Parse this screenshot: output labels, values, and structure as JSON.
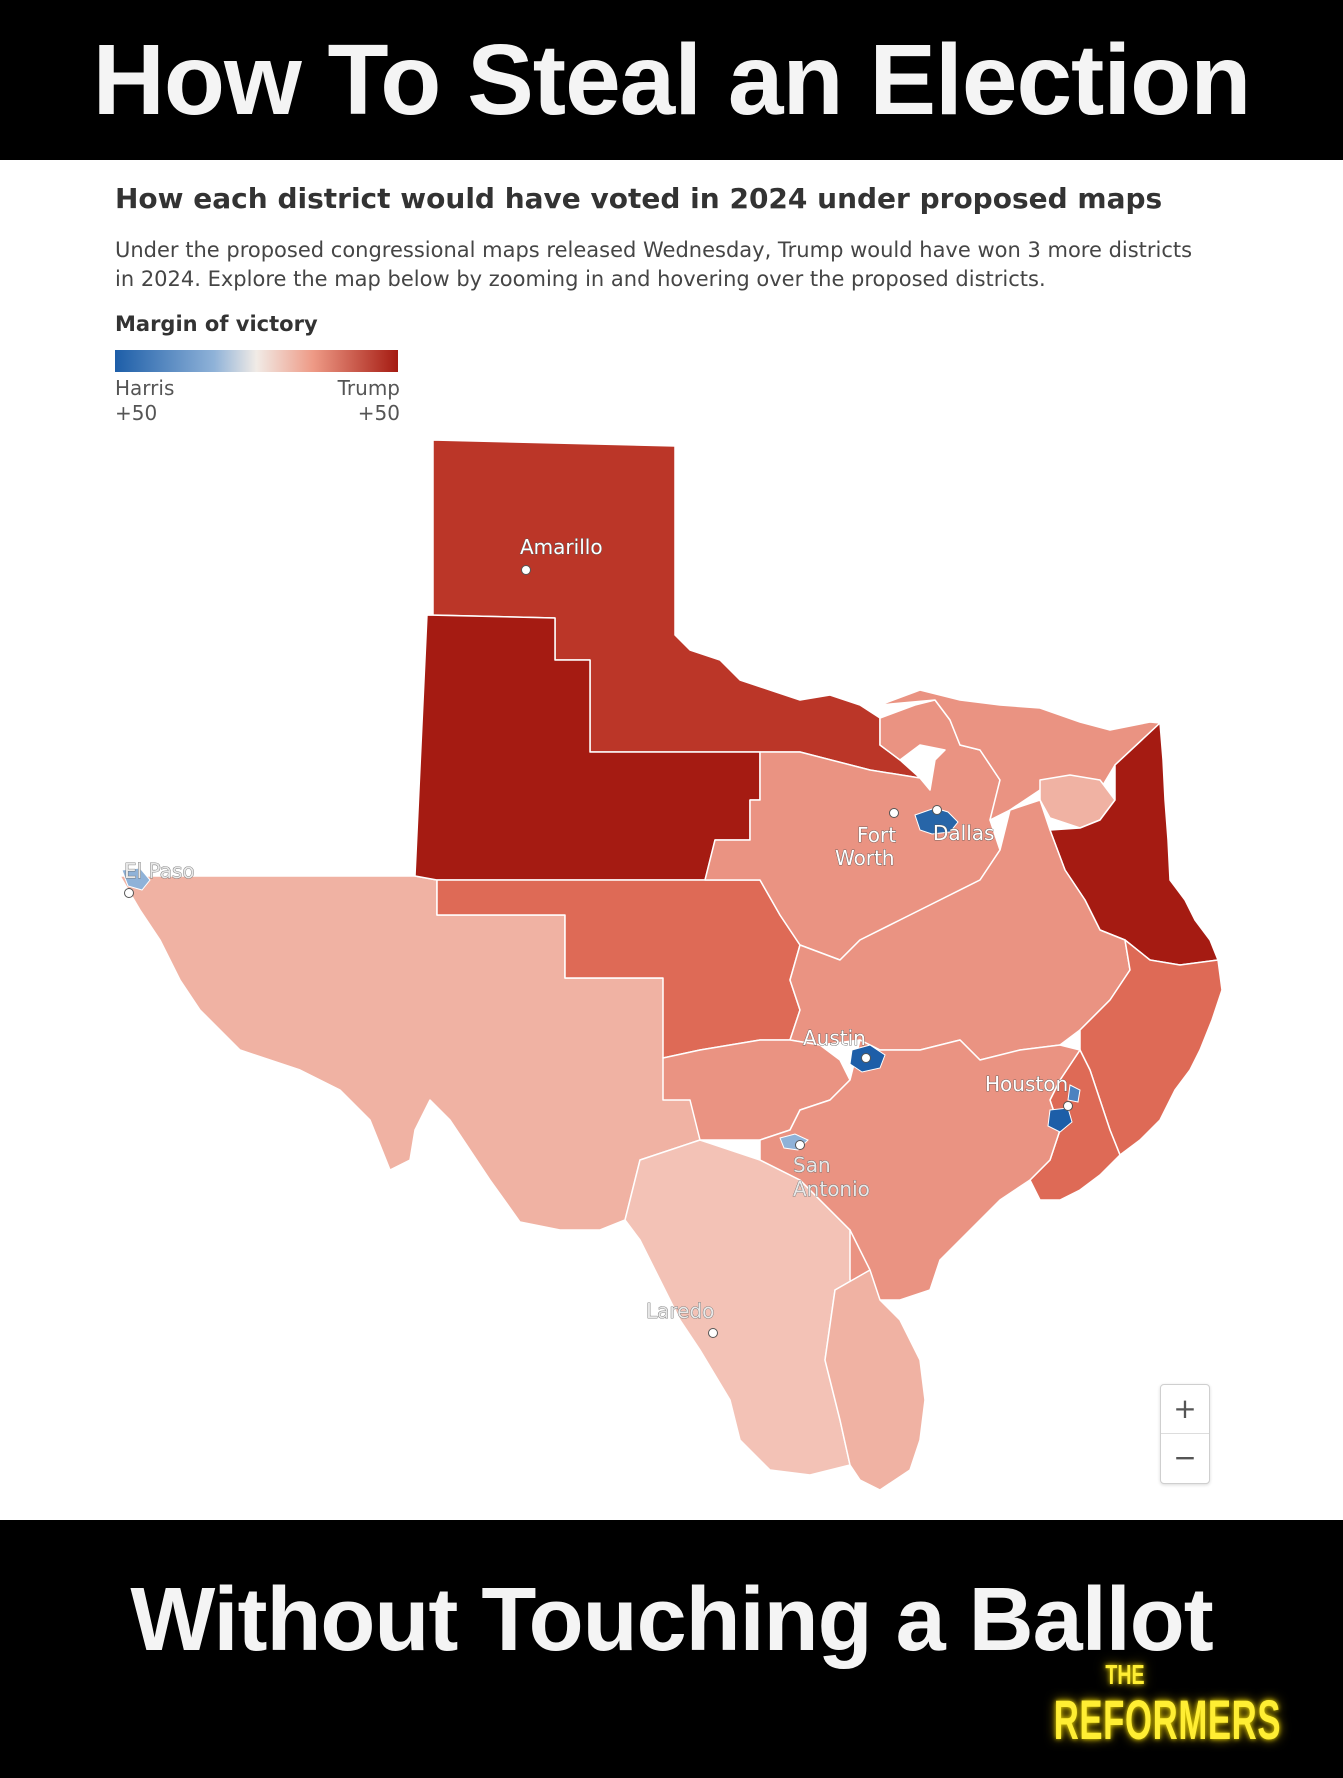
{
  "banner_top": "How To Steal an Election",
  "banner_bottom": "Without Touching a Ballot",
  "logo": {
    "line1": "THE",
    "line2": "REFORMERS"
  },
  "chart": {
    "title": "How each district would have voted in 2024 under proposed maps",
    "subtitle": "Under the proposed congressional maps released Wednesday, Trump would have won 3 more districts in 2024. Explore the map below by zooming in and hovering over the proposed districts.",
    "legend": {
      "title": "Margin of victory",
      "left_name": "Harris",
      "left_value": "+50",
      "right_name": "Trump",
      "right_value": "+50"
    }
  },
  "cities": {
    "amarillo": "Amarillo",
    "el_paso": "El Paso",
    "fort_worth_1": "Fort",
    "fort_worth_2": "Worth",
    "dallas": "Dallas",
    "austin": "Austin",
    "houston": "Houston",
    "san_antonio_1": "San",
    "san_antonio_2": "Antonio",
    "laredo": "Laredo"
  },
  "zoom": {
    "in": "+",
    "out": "−"
  },
  "colors": {
    "strong_trump": "#a51b12",
    "trump_high": "#bb3628",
    "trump_mid": "#de6a56",
    "trump_low": "#ea9382",
    "trump_lean": "#f0b2a3",
    "trump_slight": "#f3c2b6",
    "harris": "#2765a8"
  }
}
